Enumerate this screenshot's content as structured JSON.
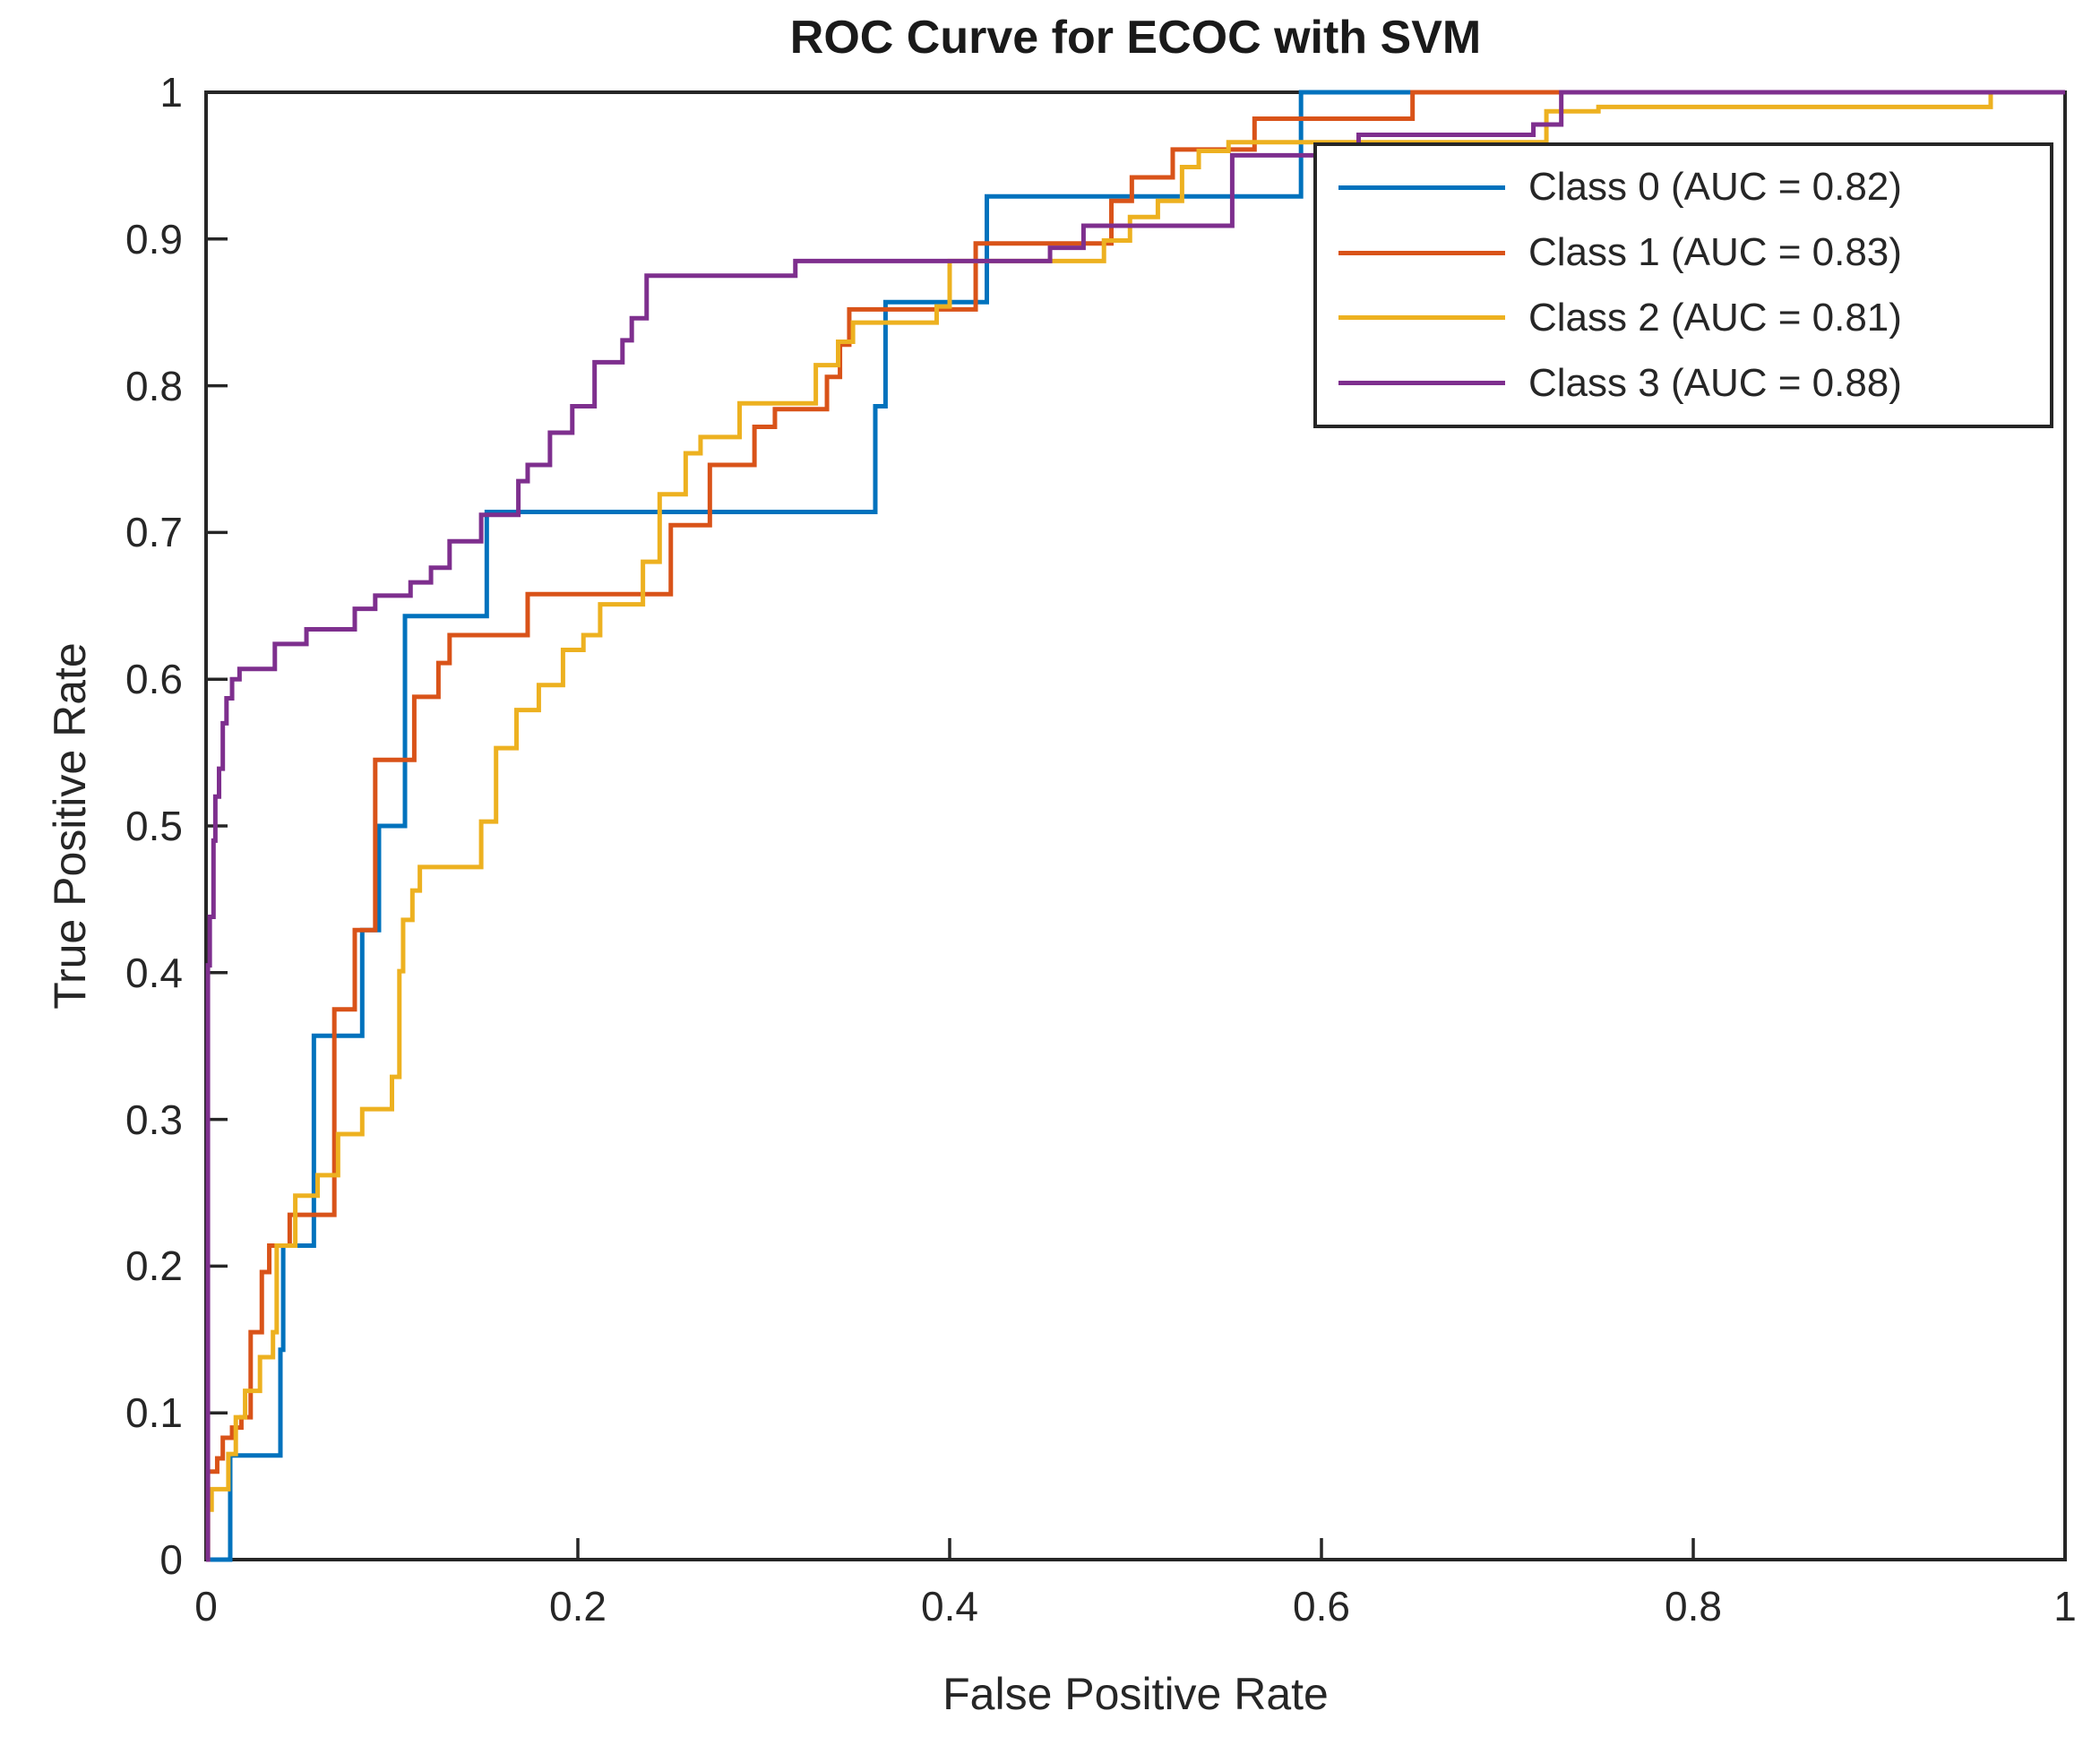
{
  "figure": {
    "title": "ROC Curve for ECOC with SVM",
    "x_axis_label": "False Positive Rate",
    "y_axis_label": "True Positive Rate"
  },
  "legend": {
    "position": "northeast",
    "items": [
      {
        "label": "Class 0 (AUC = 0.82)",
        "color": "#0072BD"
      },
      {
        "label": "Class 1 (AUC = 0.83)",
        "color": "#D95319"
      },
      {
        "label": "Class 2 (AUC = 0.81)",
        "color": "#EDB120"
      },
      {
        "label": "Class 3 (AUC = 0.88)",
        "color": "#7E2F8E"
      }
    ]
  },
  "chart_data": {
    "type": "line",
    "subtype": "roc_step",
    "title": "ROC Curve for ECOC with SVM",
    "xlabel": "False Positive Rate",
    "ylabel": "True Positive Rate",
    "xlim": [
      0,
      1
    ],
    "ylim": [
      0,
      1
    ],
    "grid": false,
    "legend_position": "northeast",
    "axis_color": "#262626",
    "x_ticks": {
      "values": [
        0,
        0.2,
        0.4,
        0.6,
        0.8,
        1
      ],
      "labels": [
        "0",
        "0.2",
        "0.4",
        "0.6",
        "0.8",
        "1"
      ]
    },
    "y_ticks": {
      "values": [
        0,
        0.1,
        0.2,
        0.3,
        0.4,
        0.5,
        0.6,
        0.7,
        0.8,
        0.9,
        1
      ],
      "labels": [
        "0",
        "0.1",
        "0.2",
        "0.3",
        "0.4",
        "0.5",
        "0.6",
        "0.7",
        "0.8",
        "0.9",
        "1"
      ]
    },
    "series": [
      {
        "name": "Class 0 (AUC = 0.82)",
        "class_id": "class-0",
        "auc": 0.82,
        "color": "#0072BD",
        "points": [
          [
            0,
            0
          ],
          [
            0.013,
            0.071
          ],
          [
            0.04,
            0.143
          ],
          [
            0.0415,
            0.214
          ],
          [
            0.058,
            0.357
          ],
          [
            0.084,
            0.429
          ],
          [
            0.093,
            0.5
          ],
          [
            0.107,
            0.643
          ],
          [
            0.151,
            0.714
          ],
          [
            0.36,
            0.786
          ],
          [
            0.3655,
            0.857
          ],
          [
            0.42,
            0.929
          ],
          [
            0.589,
            1.0
          ],
          [
            1,
            1
          ]
        ]
      },
      {
        "name": "Class 1 (AUC = 0.83)",
        "class_id": "class-1",
        "auc": 0.83,
        "color": "#D95319",
        "points": [
          [
            0,
            0
          ],
          [
            0.001,
            0.06
          ],
          [
            0.006,
            0.069
          ],
          [
            0.009,
            0.083
          ],
          [
            0.014,
            0.09
          ],
          [
            0.019,
            0.097
          ],
          [
            0.024,
            0.155
          ],
          [
            0.03,
            0.196
          ],
          [
            0.034,
            0.214
          ],
          [
            0.045,
            0.235
          ],
          [
            0.069,
            0.375
          ],
          [
            0.08,
            0.429
          ],
          [
            0.091,
            0.545
          ],
          [
            0.112,
            0.588
          ],
          [
            0.125,
            0.611
          ],
          [
            0.131,
            0.63
          ],
          [
            0.173,
            0.658
          ],
          [
            0.25,
            0.705
          ],
          [
            0.271,
            0.746
          ],
          [
            0.295,
            0.772
          ],
          [
            0.306,
            0.784
          ],
          [
            0.334,
            0.806
          ],
          [
            0.341,
            0.828
          ],
          [
            0.346,
            0.852
          ],
          [
            0.414,
            0.897
          ],
          [
            0.487,
            0.926
          ],
          [
            0.498,
            0.942
          ],
          [
            0.52,
            0.961
          ],
          [
            0.564,
            0.982
          ],
          [
            0.649,
            1.0
          ],
          [
            1,
            1
          ]
        ]
      },
      {
        "name": "Class 2 (AUC = 0.81)",
        "class_id": "class-2",
        "auc": 0.81,
        "color": "#EDB120",
        "points": [
          [
            0,
            0
          ],
          [
            0.001,
            0.034
          ],
          [
            0.003,
            0.048
          ],
          [
            0.012,
            0.072
          ],
          [
            0.016,
            0.097
          ],
          [
            0.021,
            0.115
          ],
          [
            0.029,
            0.138
          ],
          [
            0.036,
            0.155
          ],
          [
            0.038,
            0.214
          ],
          [
            0.048,
            0.248
          ],
          [
            0.06,
            0.262
          ],
          [
            0.071,
            0.29
          ],
          [
            0.084,
            0.307
          ],
          [
            0.1,
            0.329
          ],
          [
            0.104,
            0.401
          ],
          [
            0.106,
            0.436
          ],
          [
            0.111,
            0.456
          ],
          [
            0.115,
            0.472
          ],
          [
            0.148,
            0.503
          ],
          [
            0.156,
            0.553
          ],
          [
            0.167,
            0.579
          ],
          [
            0.179,
            0.596
          ],
          [
            0.192,
            0.62
          ],
          [
            0.203,
            0.63
          ],
          [
            0.212,
            0.651
          ],
          [
            0.235,
            0.68
          ],
          [
            0.244,
            0.726
          ],
          [
            0.258,
            0.754
          ],
          [
            0.266,
            0.765
          ],
          [
            0.287,
            0.788
          ],
          [
            0.328,
            0.814
          ],
          [
            0.34,
            0.83
          ],
          [
            0.348,
            0.843
          ],
          [
            0.393,
            0.854
          ],
          [
            0.4,
            0.885
          ],
          [
            0.483,
            0.899
          ],
          [
            0.497,
            0.915
          ],
          [
            0.512,
            0.926
          ],
          [
            0.525,
            0.949
          ],
          [
            0.534,
            0.96
          ],
          [
            0.55,
            0.966
          ],
          [
            0.721,
            0.987
          ],
          [
            0.749,
            0.99
          ],
          [
            0.96,
            1.0
          ],
          [
            1,
            1
          ]
        ]
      },
      {
        "name": "Class 3 (AUC = 0.88)",
        "class_id": "class-3",
        "auc": 0.88,
        "color": "#7E2F8E",
        "points": [
          [
            0,
            0
          ],
          [
            0.001,
            0.405
          ],
          [
            0.002,
            0.438
          ],
          [
            0.004,
            0.49
          ],
          [
            0.005,
            0.52
          ],
          [
            0.007,
            0.539
          ],
          [
            0.009,
            0.57
          ],
          [
            0.011,
            0.587
          ],
          [
            0.014,
            0.6
          ],
          [
            0.018,
            0.607
          ],
          [
            0.037,
            0.624
          ],
          [
            0.054,
            0.634
          ],
          [
            0.08,
            0.648
          ],
          [
            0.091,
            0.657
          ],
          [
            0.11,
            0.666
          ],
          [
            0.121,
            0.676
          ],
          [
            0.131,
            0.694
          ],
          [
            0.148,
            0.712
          ],
          [
            0.168,
            0.735
          ],
          [
            0.173,
            0.746
          ],
          [
            0.185,
            0.768
          ],
          [
            0.197,
            0.786
          ],
          [
            0.209,
            0.816
          ],
          [
            0.224,
            0.831
          ],
          [
            0.229,
            0.846
          ],
          [
            0.237,
            0.875
          ],
          [
            0.317,
            0.885
          ],
          [
            0.454,
            0.894
          ],
          [
            0.472,
            0.909
          ],
          [
            0.552,
            0.957
          ],
          [
            0.62,
            0.971
          ],
          [
            0.714,
            0.978
          ],
          [
            0.729,
            1.0
          ],
          [
            1,
            1
          ]
        ]
      }
    ]
  }
}
